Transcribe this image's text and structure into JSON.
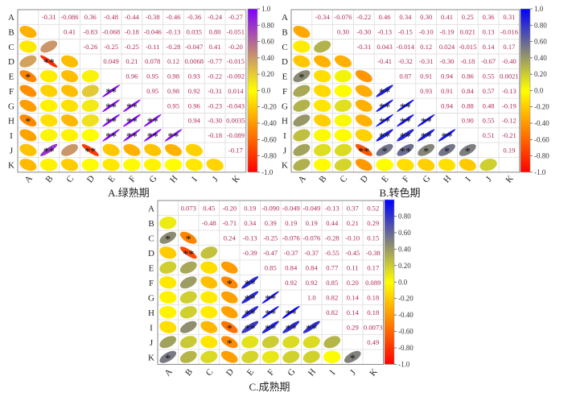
{
  "chart_data": [
    {
      "type": "heatmap",
      "subtype": "correlation-ellipse",
      "title": "A.绿熟期",
      "variables": [
        "A",
        "B",
        "C",
        "D",
        "E",
        "F",
        "G",
        "H",
        "I",
        "J",
        "K"
      ],
      "upper_values": [
        [
          "-0.31",
          "-0.086",
          "0.36",
          "-0.48",
          "-0.44",
          "-0.38",
          "-0.46",
          "-0.36",
          "-0.24",
          "-0.27"
        ],
        [
          "0.41",
          "-0.83",
          "-0.068",
          "-0.18",
          "-0.046",
          "-0.13",
          "0.035",
          "0.80",
          "-0.051"
        ],
        [
          "-0.26",
          "-0.25",
          "-0.25",
          "-0.11",
          "-0.28",
          "-0.047",
          "0.41",
          "-0.20"
        ],
        [
          "0.049",
          "0.21",
          "0.078",
          "0.12",
          "0.0068",
          "-0.77",
          "-0.015"
        ],
        [
          "0.96",
          "0.95",
          "0.98",
          "0.93",
          "-0.22",
          "-0.092"
        ],
        [
          "0.95",
          "0.98",
          "0.92",
          "-0.31",
          "0.014"
        ],
        [
          "0.95",
          "0.96",
          "-0.23",
          "-0.043"
        ],
        [
          "0.94",
          "-0.30",
          "0.0035"
        ],
        [
          "-0.18",
          "-0.089"
        ],
        [
          "-0.17"
        ]
      ],
      "significance": [
        {
          "row": "D",
          "col": "B",
          "mark": "**"
        },
        {
          "row": "E",
          "col": "A",
          "mark": "*"
        },
        {
          "row": "F",
          "col": "E",
          "mark": "**"
        },
        {
          "row": "G",
          "col": "E",
          "mark": "**"
        },
        {
          "row": "G",
          "col": "F",
          "mark": "**"
        },
        {
          "row": "H",
          "col": "A",
          "mark": "*"
        },
        {
          "row": "H",
          "col": "E",
          "mark": "**"
        },
        {
          "row": "H",
          "col": "F",
          "mark": "**"
        },
        {
          "row": "H",
          "col": "G",
          "mark": "**"
        },
        {
          "row": "I",
          "col": "E",
          "mark": "**"
        },
        {
          "row": "I",
          "col": "F",
          "mark": "**"
        },
        {
          "row": "I",
          "col": "G",
          "mark": "**"
        },
        {
          "row": "I",
          "col": "H",
          "mark": "**"
        },
        {
          "row": "J",
          "col": "B",
          "mark": "**"
        },
        {
          "row": "J",
          "col": "D",
          "mark": "**"
        }
      ],
      "colorbar": {
        "range": [
          -1,
          1
        ],
        "ticks": [
          "1.0",
          "0.80",
          "0.60",
          "0.40",
          "0.20",
          "0.0",
          "-0.20",
          "-0.40",
          "-0.60",
          "-0.80",
          "-1.0"
        ],
        "colors": {
          "neg": "#ff0000",
          "zero": "#ffff00",
          "pos": "#8000ff"
        }
      }
    },
    {
      "type": "heatmap",
      "subtype": "correlation-ellipse",
      "title": "B.转色期",
      "variables": [
        "A",
        "B",
        "C",
        "D",
        "E",
        "F",
        "G",
        "H",
        "I",
        "J",
        "K"
      ],
      "upper_values": [
        [
          "-0.34",
          "-0.076",
          "-0.22",
          "0.46",
          "0.34",
          "0.30",
          "0.41",
          "0.25",
          "0.36",
          "0.31"
        ],
        [
          "0.30",
          "-0.30",
          "-0.13",
          "-0.15",
          "-0.10",
          "-0.19",
          "0.021",
          "0.13",
          "-0.016"
        ],
        [
          "-0.31",
          "0.043",
          "-0.014",
          "0.12",
          "0.024",
          "-0.015",
          "0.14",
          "0.17"
        ],
        [
          "-0.41",
          "-0.32",
          "-0.31",
          "-0.30",
          "-0.18",
          "-0.67",
          "-0.40"
        ],
        [
          "0.87",
          "0.91",
          "0.94",
          "0.86",
          "0.55",
          "0.0021"
        ],
        [
          "0.93",
          "0.91",
          "0.84",
          "0.57",
          "-0.13"
        ],
        [
          "0.94",
          "0.88",
          "0.48",
          "-0.19"
        ],
        [
          "0.90",
          "0.55",
          "-0.12"
        ],
        [
          "0.51",
          "-0.21"
        ],
        [
          "0.19"
        ]
      ],
      "significance": [
        {
          "row": "E",
          "col": "A",
          "mark": "*"
        },
        {
          "row": "F",
          "col": "E",
          "mark": "**"
        },
        {
          "row": "G",
          "col": "E",
          "mark": "**"
        },
        {
          "row": "G",
          "col": "F",
          "mark": "**"
        },
        {
          "row": "H",
          "col": "E",
          "mark": "**"
        },
        {
          "row": "H",
          "col": "F",
          "mark": "**"
        },
        {
          "row": "H",
          "col": "G",
          "mark": "**"
        },
        {
          "row": "I",
          "col": "E",
          "mark": "**"
        },
        {
          "row": "I",
          "col": "F",
          "mark": "**"
        },
        {
          "row": "I",
          "col": "G",
          "mark": "**"
        },
        {
          "row": "I",
          "col": "H",
          "mark": "**"
        },
        {
          "row": "J",
          "col": "D",
          "mark": "**"
        },
        {
          "row": "J",
          "col": "E",
          "mark": "*"
        },
        {
          "row": "J",
          "col": "F",
          "mark": "**"
        },
        {
          "row": "J",
          "col": "G",
          "mark": "*"
        },
        {
          "row": "J",
          "col": "H",
          "mark": "*"
        },
        {
          "row": "J",
          "col": "I",
          "mark": "*"
        }
      ],
      "colorbar": {
        "range": [
          -1,
          1
        ],
        "ticks": [
          "1.0",
          "0.80",
          "0.60",
          "0.40",
          "0.20",
          "0.0",
          "-0.20",
          "-0.40",
          "-0.60",
          "-0.80",
          "-1.0"
        ],
        "colors": {
          "neg": "#ff0000",
          "zero": "#ffff00",
          "pos": "#0000ff"
        }
      }
    },
    {
      "type": "heatmap",
      "subtype": "correlation-ellipse",
      "title": "C.成熟期",
      "variables": [
        "A",
        "B",
        "C",
        "D",
        "E",
        "F",
        "G",
        "H",
        "I",
        "J",
        "K"
      ],
      "upper_values": [
        [
          "0.073",
          "0.45",
          "-0.20",
          "0.19",
          "-0.090",
          "-0.049",
          "-0.049",
          "-0.13",
          "0.37",
          "0.52"
        ],
        [
          "-0.48",
          "-0.71",
          "0.34",
          "0.39",
          "0.19",
          "0.19",
          "0.44",
          "0.21",
          "0.29"
        ],
        [
          "0.24",
          "-0.13",
          "-0.25",
          "-0.076",
          "-0.076",
          "-0.28",
          "-0.10",
          "0.15"
        ],
        [
          "-0.39",
          "-0.47",
          "-0.37",
          "-0.37",
          "-0.55",
          "-0.45",
          "-0.38"
        ],
        [
          "0.85",
          "0.84",
          "0.84",
          "0.77",
          "0.11",
          "0.17"
        ],
        [
          "0.92",
          "0.92",
          "0.85",
          "0.20",
          "0.089"
        ],
        [
          "1.0",
          "0.82",
          "0.14",
          "0.18"
        ],
        [
          "0.82",
          "0.14",
          "0.18"
        ],
        [
          "0.29",
          "0.0073"
        ],
        [
          "0.49"
        ]
      ],
      "significance": [
        {
          "row": "C",
          "col": "A",
          "mark": "*"
        },
        {
          "row": "C",
          "col": "B",
          "mark": "*"
        },
        {
          "row": "D",
          "col": "B",
          "mark": "**"
        },
        {
          "row": "F",
          "col": "D",
          "mark": "*"
        },
        {
          "row": "F",
          "col": "E",
          "mark": "**"
        },
        {
          "row": "G",
          "col": "E",
          "mark": "**"
        },
        {
          "row": "G",
          "col": "F",
          "mark": "**"
        },
        {
          "row": "H",
          "col": "E",
          "mark": "**"
        },
        {
          "row": "H",
          "col": "F",
          "mark": "**"
        },
        {
          "row": "H",
          "col": "G",
          "mark": "**"
        },
        {
          "row": "I",
          "col": "D",
          "mark": "*"
        },
        {
          "row": "I",
          "col": "E",
          "mark": "**"
        },
        {
          "row": "I",
          "col": "F",
          "mark": "**"
        },
        {
          "row": "I",
          "col": "G",
          "mark": "**"
        },
        {
          "row": "I",
          "col": "H",
          "mark": "**"
        },
        {
          "row": "J",
          "col": "D",
          "mark": "*"
        },
        {
          "row": "K",
          "col": "A",
          "mark": "*"
        },
        {
          "row": "K",
          "col": "J",
          "mark": "*"
        }
      ],
      "colorbar": {
        "range": [
          -1,
          1
        ],
        "ticks": [
          "0.80",
          "0.60",
          "0.40",
          "0.20",
          "0.0",
          "-0.20",
          "-0.40",
          "-0.60",
          "-0.80",
          "-1.0"
        ],
        "colors": {
          "neg": "#ff0000",
          "zero": "#ffff00",
          "pos": "#0000ff"
        }
      }
    }
  ],
  "text_colors": {
    "value": "#b02a5c"
  }
}
